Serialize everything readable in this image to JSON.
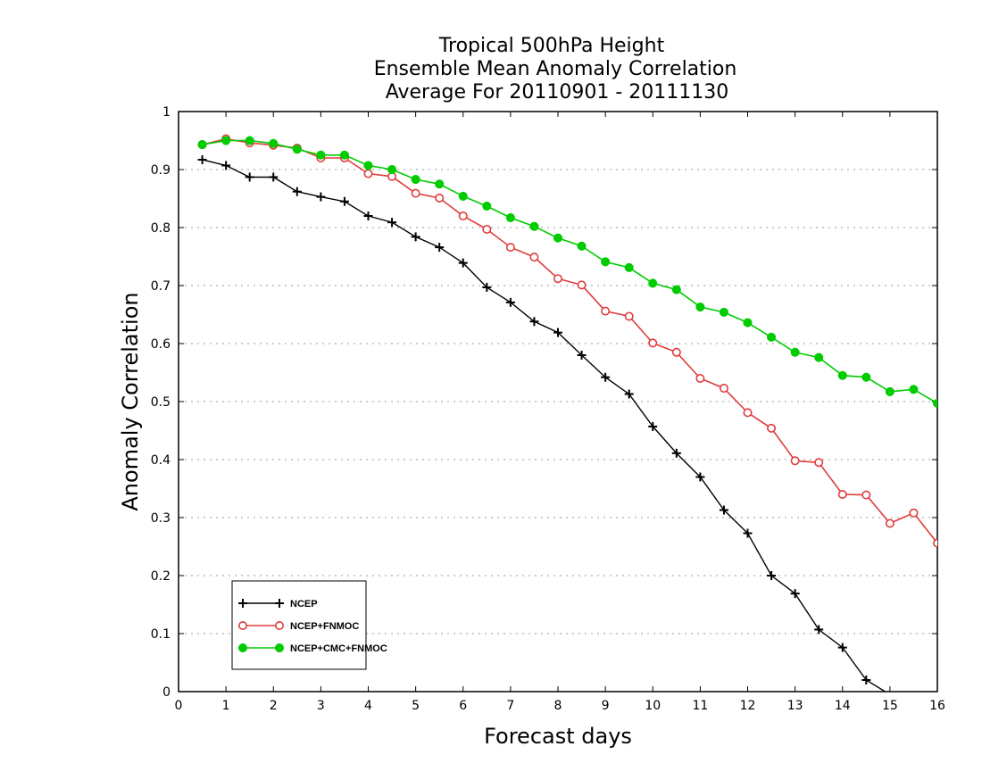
{
  "chart_data": {
    "type": "line",
    "title_lines": [
      "Tropical 500hPa Height",
      "Ensemble Mean Anomaly Correlation",
      "Average For 20110901 - 20111130"
    ],
    "xlabel": "Forecast days",
    "ylabel": "Anomaly Correlation",
    "xlim": [
      0,
      16
    ],
    "ylim": [
      0,
      1
    ],
    "x_ticks": [
      "0",
      "1",
      "2",
      "3",
      "4",
      "5",
      "6",
      "7",
      "8",
      "9",
      "10",
      "11",
      "12",
      "13",
      "14",
      "15",
      "16"
    ],
    "y_ticks": [
      "0",
      "0.1",
      "0.2",
      "0.3",
      "0.4",
      "0.5",
      "0.6",
      "0.7",
      "0.8",
      "0.9",
      "1"
    ],
    "grid": "horizontal-dotted",
    "legend_position": "bottom-left",
    "x": [
      0.5,
      1,
      1.5,
      2,
      2.5,
      3,
      3.5,
      4,
      4.5,
      5,
      5.5,
      6,
      6.5,
      7,
      7.5,
      8,
      8.5,
      9,
      9.5,
      10,
      10.5,
      11,
      11.5,
      12,
      12.5,
      13,
      13.5,
      14,
      14.5,
      15,
      15.5,
      16
    ],
    "series": [
      {
        "name": "NCEP",
        "color": "#000000",
        "marker": "plus",
        "values": [
          0.917,
          0.907,
          0.887,
          0.887,
          0.862,
          0.853,
          0.845,
          0.82,
          0.809,
          0.784,
          0.766,
          0.739,
          0.697,
          0.671,
          0.638,
          0.619,
          0.58,
          0.542,
          0.513,
          0.457,
          0.411,
          0.37,
          0.313,
          0.273,
          0.2,
          0.169,
          0.107,
          0.076,
          0.02,
          -0.005,
          null,
          null
        ]
      },
      {
        "name": "NCEP+FNMOC",
        "color": "#e03c3c",
        "marker": "open-circle",
        "values": [
          0.943,
          0.953,
          0.946,
          0.942,
          0.937,
          0.92,
          0.92,
          0.893,
          0.888,
          0.859,
          0.851,
          0.82,
          0.797,
          0.766,
          0.749,
          0.712,
          0.701,
          0.656,
          0.647,
          0.601,
          0.585,
          0.54,
          0.523,
          0.481,
          0.454,
          0.398,
          0.395,
          0.34,
          0.339,
          0.29,
          0.308,
          0.256
        ]
      },
      {
        "name": "NCEP+CMC+FNMOC",
        "color": "#00cc00",
        "marker": "filled-circle",
        "values": [
          0.943,
          0.95,
          0.95,
          0.945,
          0.935,
          0.925,
          0.925,
          0.907,
          0.9,
          0.883,
          0.875,
          0.854,
          0.837,
          0.817,
          0.802,
          0.782,
          0.768,
          0.741,
          0.731,
          0.704,
          0.693,
          0.663,
          0.654,
          0.636,
          0.611,
          0.585,
          0.576,
          0.545,
          0.542,
          0.517,
          0.521,
          0.497
        ]
      }
    ]
  }
}
